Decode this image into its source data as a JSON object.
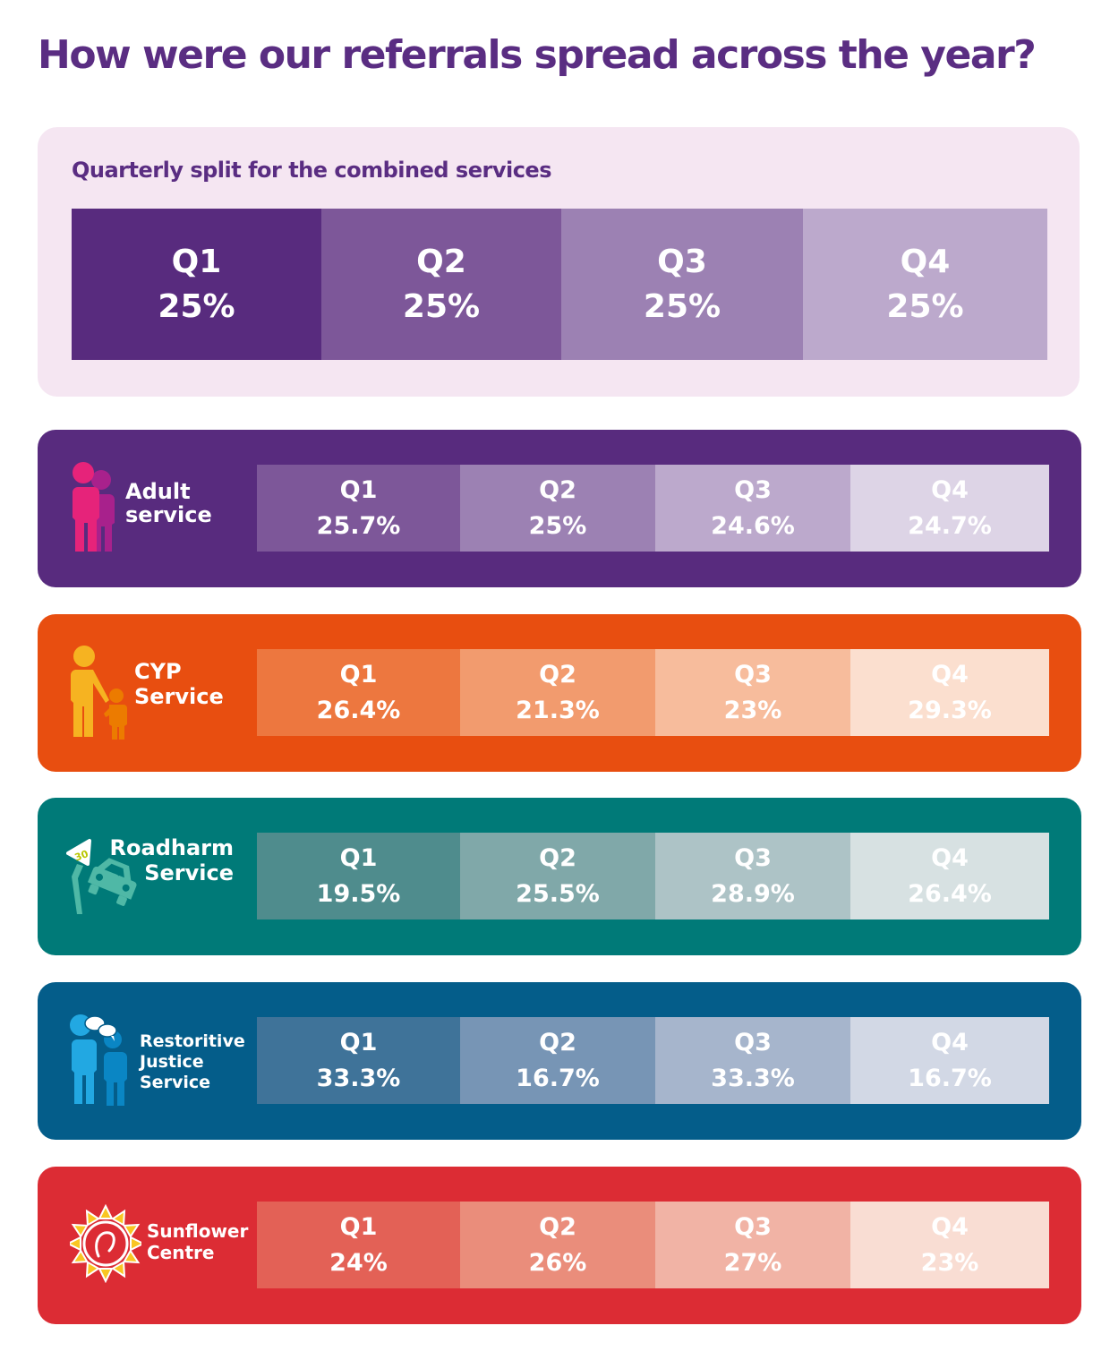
{
  "title": "How were our referrals spread across the year?",
  "combined": {
    "subtitle": "Quarterly split for the combined services",
    "quarters": [
      {
        "label": "Q1",
        "value": "25%",
        "color": "#582b7e"
      },
      {
        "label": "Q2",
        "value": "25%",
        "color": "#7d5799"
      },
      {
        "label": "Q3",
        "value": "25%",
        "color": "#9c81b3"
      },
      {
        "label": "Q4",
        "value": "25%",
        "color": "#bca9cc"
      }
    ]
  },
  "services": [
    {
      "name_lines": [
        "Adult",
        "service"
      ],
      "icon": "adult-people-icon",
      "bg": "#582b7e",
      "quarters": [
        {
          "label": "Q1",
          "value": "25.7%",
          "color": "#7d5799"
        },
        {
          "label": "Q2",
          "value": "25%",
          "color": "#9c81b3"
        },
        {
          "label": "Q3",
          "value": "24.6%",
          "color": "#bca9cc"
        },
        {
          "label": "Q4",
          "value": "24.7%",
          "color": "#ddd4e6"
        }
      ]
    },
    {
      "name_lines": [
        "CYP",
        "Service"
      ],
      "icon": "parent-child-icon",
      "bg": "#e84e10",
      "quarters": [
        {
          "label": "Q1",
          "value": "26.4%",
          "color": "#ed773f"
        },
        {
          "label": "Q2",
          "value": "21.3%",
          "color": "#f29b6e"
        },
        {
          "label": "Q3",
          "value": "23%",
          "color": "#f7bc9c"
        },
        {
          "label": "Q4",
          "value": "29.3%",
          "color": "#fbdfcf"
        }
      ]
    },
    {
      "name_lines": [
        "Roadharm",
        "Service"
      ],
      "icon": "car-crash-icon",
      "sign_text": "30",
      "bg": "#007a78",
      "quarters": [
        {
          "label": "Q1",
          "value": "19.5%",
          "color": "#4f8c8d"
        },
        {
          "label": "Q2",
          "value": "25.5%",
          "color": "#80a8a9"
        },
        {
          "label": "Q3",
          "value": "28.9%",
          "color": "#adc3c6"
        },
        {
          "label": "Q4",
          "value": "26.4%",
          "color": "#d7e1e2"
        }
      ]
    },
    {
      "name_lines": [
        "Restoritive",
        "Justice",
        "Service"
      ],
      "icon": "people-talking-icon",
      "bg": "#045d8a",
      "quarters": [
        {
          "label": "Q1",
          "value": "33.3%",
          "color": "#3f7399"
        },
        {
          "label": "Q2",
          "value": "16.7%",
          "color": "#7795b5"
        },
        {
          "label": "Q3",
          "value": "33.3%",
          "color": "#a6b5cc"
        },
        {
          "label": "Q4",
          "value": "16.7%",
          "color": "#d2d8e5"
        }
      ]
    },
    {
      "name_lines": [
        "Sunflower",
        "Centre"
      ],
      "icon": "sunflower-logo-icon",
      "bg": "#dc2c34",
      "quarters": [
        {
          "label": "Q1",
          "value": "24%",
          "color": "#e36156"
        },
        {
          "label": "Q2",
          "value": "26%",
          "color": "#ea8d7b"
        },
        {
          "label": "Q3",
          "value": "27%",
          "color": "#f1b3a5"
        },
        {
          "label": "Q4",
          "value": "23%",
          "color": "#f9ddd3"
        }
      ]
    }
  ],
  "chart_data": {
    "type": "table",
    "title": "How were our referrals spread across the year?",
    "categories": [
      "Q1",
      "Q2",
      "Q3",
      "Q4"
    ],
    "series": [
      {
        "name": "Combined services",
        "values": [
          25,
          25,
          25,
          25
        ]
      },
      {
        "name": "Adult service",
        "values": [
          25.7,
          25,
          24.6,
          24.7
        ]
      },
      {
        "name": "CYP Service",
        "values": [
          26.4,
          21.3,
          23,
          29.3
        ]
      },
      {
        "name": "Roadharm Service",
        "values": [
          19.5,
          25.5,
          28.9,
          26.4
        ]
      },
      {
        "name": "Restoritive Justice Service",
        "values": [
          33.3,
          16.7,
          33.3,
          16.7
        ]
      },
      {
        "name": "Sunflower Centre",
        "values": [
          24,
          26,
          27,
          23
        ]
      }
    ],
    "unit": "%"
  }
}
